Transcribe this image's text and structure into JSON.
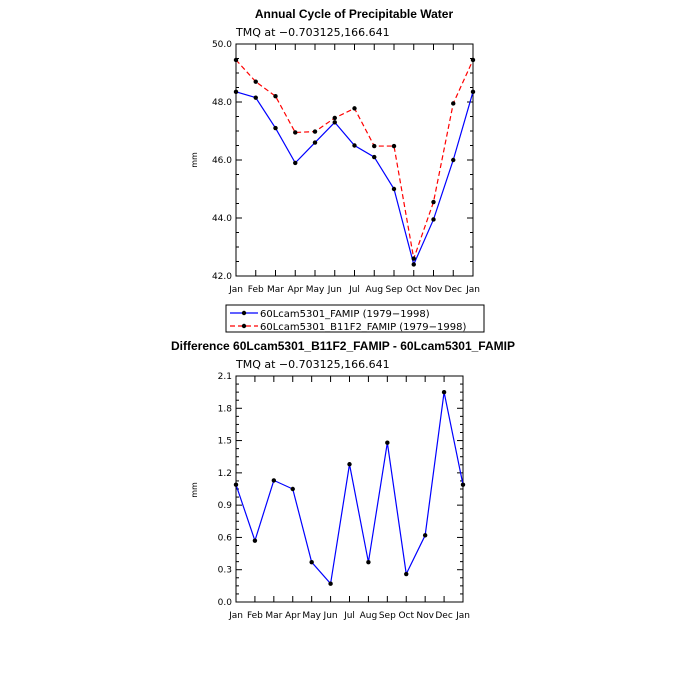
{
  "months": [
    "Jan",
    "Feb",
    "Mar",
    "Apr",
    "May",
    "Jun",
    "Jul",
    "Aug",
    "Sep",
    "Oct",
    "Nov",
    "Dec",
    "Jan"
  ],
  "chart_data": [
    {
      "type": "line",
      "title": "Annual Cycle of Precipitable Water",
      "subtitle": "TMQ at −0.703125,166.641",
      "ylabel": "mm",
      "ylim": [
        42.0,
        50.0
      ],
      "yticks": [
        "42.0",
        "44.0",
        "46.0",
        "48.0",
        "50.0"
      ],
      "ytick_values": [
        42,
        44,
        46,
        48,
        50
      ],
      "series": [
        {
          "name": "60Lcam5301_FAMIP (1979−1998)",
          "color": "#0000ff",
          "dash": "solid",
          "values": [
            48.35,
            48.15,
            47.1,
            45.9,
            46.6,
            47.3,
            46.5,
            46.1,
            45.0,
            42.4,
            43.95,
            46.0,
            48.35
          ]
        },
        {
          "name": "60Lcam5301_B11F2_FAMIP (1979−1998)",
          "color": "#ff0000",
          "dash": "dashed",
          "values": [
            49.45,
            48.7,
            48.2,
            46.95,
            46.98,
            47.45,
            47.78,
            46.48,
            46.48,
            42.6,
            44.55,
            47.95,
            49.45
          ]
        }
      ]
    },
    {
      "type": "line",
      "title": "Difference 60Lcam5301_B11F2_FAMIP - 60Lcam5301_FAMIP",
      "subtitle": "TMQ at −0.703125,166.641",
      "ylabel": "mm",
      "ylim": [
        0.0,
        2.1
      ],
      "yticks": [
        "0.0",
        "0.3",
        "0.6",
        "0.9",
        "1.2",
        "1.5",
        "1.8",
        "2.1"
      ],
      "ytick_values": [
        0,
        0.3,
        0.6,
        0.9,
        1.2,
        1.5,
        1.8,
        2.1
      ],
      "series": [
        {
          "color": "#0000ff",
          "dash": "solid",
          "values": [
            1.09,
            0.57,
            1.13,
            1.05,
            0.37,
            0.17,
            1.28,
            0.37,
            1.48,
            0.26,
            0.62,
            1.95,
            1.09
          ]
        }
      ]
    }
  ]
}
